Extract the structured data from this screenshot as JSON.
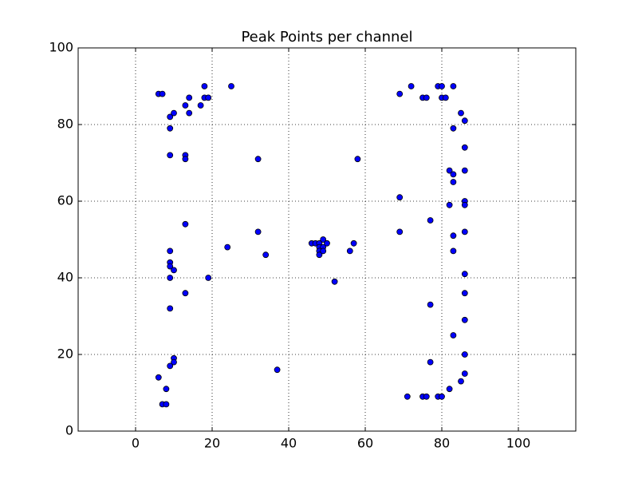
{
  "chart_data": {
    "type": "scatter",
    "title": "Peak Points per channel",
    "x": [
      6,
      7,
      9,
      10,
      9,
      13,
      14,
      14,
      17,
      18,
      18,
      19,
      25,
      9,
      13,
      13,
      32,
      13,
      32,
      24,
      34,
      9,
      9,
      9,
      10,
      9,
      19,
      13,
      9,
      37,
      10,
      10,
      9,
      6,
      8,
      7,
      8,
      46,
      47,
      48,
      48,
      48,
      48,
      49,
      49,
      49,
      50,
      57,
      56,
      52,
      58,
      69,
      72,
      75,
      76,
      79,
      80,
      80,
      81,
      83,
      85,
      86,
      83,
      86,
      82,
      83,
      86,
      83,
      69,
      82,
      86,
      86,
      77,
      69,
      83,
      86,
      83,
      86,
      86,
      77,
      86,
      83,
      86,
      77,
      86,
      85,
      82,
      71,
      75,
      76,
      79,
      80
    ],
    "y": [
      88,
      88,
      82,
      83,
      79,
      85,
      87,
      83,
      85,
      90,
      87,
      87,
      90,
      72,
      72,
      71,
      71,
      54,
      52,
      48,
      46,
      47,
      44,
      43,
      42,
      40,
      40,
      36,
      32,
      16,
      19,
      18,
      17,
      14,
      11,
      7,
      7,
      49,
      49,
      49,
      48,
      47,
      46,
      50,
      48,
      47,
      49,
      49,
      47,
      39,
      71,
      88,
      90,
      87,
      87,
      90,
      90,
      87,
      87,
      90,
      83,
      81,
      79,
      74,
      68,
      67,
      68,
      65,
      61,
      59,
      60,
      59,
      55,
      52,
      51,
      52,
      47,
      41,
      36,
      33,
      29,
      25,
      20,
      18,
      15,
      13,
      11,
      9,
      9,
      9,
      9,
      9
    ],
    "color": "#0000ff",
    "xlim": [
      -15,
      115
    ],
    "ylim": [
      0,
      100
    ],
    "xticks": [
      0,
      20,
      40,
      60,
      80,
      100
    ],
    "yticks": [
      0,
      20,
      40,
      60,
      80,
      100
    ],
    "grid": true
  }
}
